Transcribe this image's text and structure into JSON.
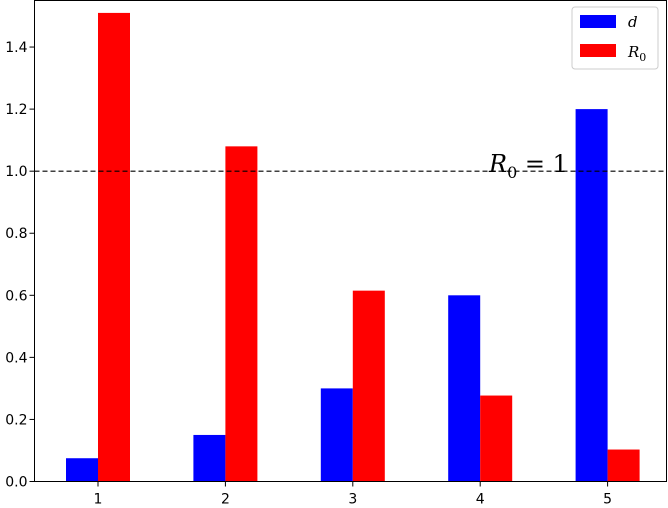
{
  "chart_data": {
    "type": "bar",
    "categories": [
      "1",
      "2",
      "3",
      "4",
      "5"
    ],
    "series": [
      {
        "name": "d",
        "values": [
          0.075,
          0.15,
          0.3,
          0.6,
          1.2
        ],
        "color": "#0000ff"
      },
      {
        "name": "R0",
        "values": [
          1.51,
          1.08,
          0.615,
          0.277,
          0.103
        ],
        "color": "#ff0000"
      }
    ],
    "title": "",
    "xlabel": "",
    "ylabel": "",
    "ylim": [
      0,
      1.55
    ],
    "yticks": [
      "0.0",
      "0.2",
      "0.4",
      "0.6",
      "0.8",
      "1.0",
      "1.2",
      "1.4"
    ],
    "grid": false,
    "legend": {
      "placement": "top-right",
      "entries": [
        {
          "label": "d",
          "color": "#0000ff"
        },
        {
          "label": "R",
          "subscript": "0",
          "color": "#ff0000"
        }
      ]
    },
    "reference_line": {
      "y": 1.0,
      "style": "dashed",
      "color": "#000000"
    },
    "annotation": {
      "main": "R",
      "subscript": "0",
      "rest": " = 1"
    }
  }
}
